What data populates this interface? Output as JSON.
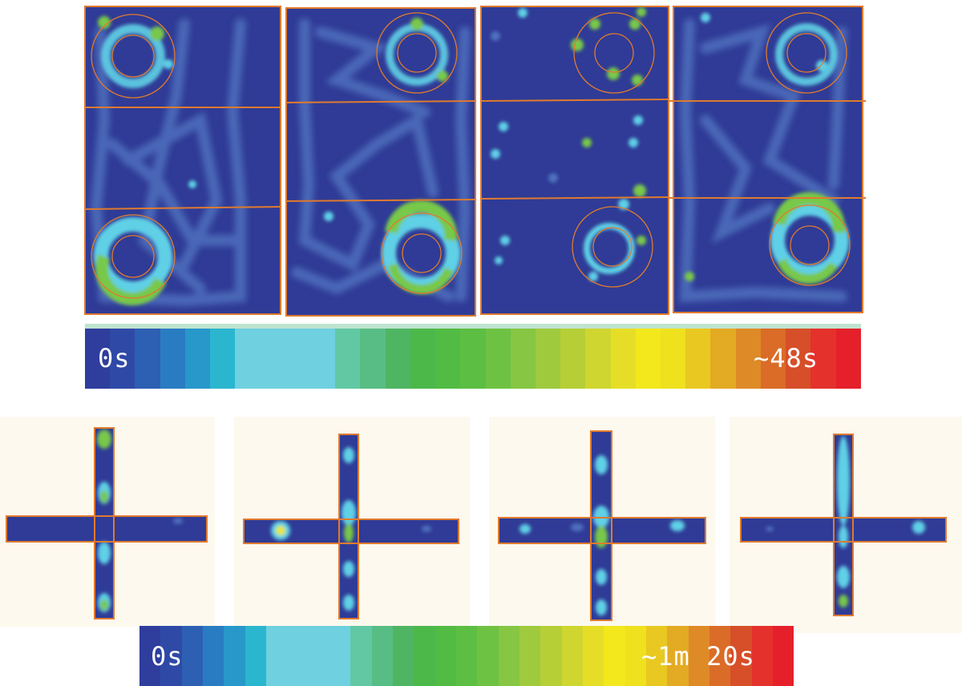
{
  "top_figure": {
    "colorbar": {
      "min_label": "0s",
      "max_label": "~48s",
      "colors": [
        "#2f3d9c",
        "#2f4aa6",
        "#2d5fb3",
        "#2a7cc2",
        "#2798c9",
        "#2bb6cf",
        "#6fd0e0",
        "#6fd0e0",
        "#6fd0e0",
        "#6fd0e0",
        "#62c8a4",
        "#58bd84",
        "#4fb562",
        "#4cb84a",
        "#52bb44",
        "#5cbe42",
        "#6ec243",
        "#86c642",
        "#9fca3e",
        "#b6cf37",
        "#cfd62f",
        "#e6de26",
        "#f2e81c",
        "#efe11e",
        "#e9c921",
        "#e3aa24",
        "#de8a27",
        "#da6c28",
        "#d64f29",
        "#e5312c",
        "#e5202b"
      ]
    }
  },
  "bottom_figure": {
    "colorbar": {
      "min_label": "0s",
      "max_label": "~1m 20s",
      "colors": [
        "#2f3d9c",
        "#2f4aa6",
        "#2d5fb3",
        "#2a7cc2",
        "#2798c9",
        "#2bb6cf",
        "#6fd0e0",
        "#6fd0e0",
        "#6fd0e0",
        "#6fd0e0",
        "#62c8a4",
        "#58bd84",
        "#4fb562",
        "#4cb84a",
        "#52bb44",
        "#5cbe42",
        "#6ec243",
        "#86c642",
        "#9fca3e",
        "#b6cf37",
        "#cfd62f",
        "#e6de26",
        "#f2e81c",
        "#efe11e",
        "#e9c921",
        "#e3aa24",
        "#de8a27",
        "#da6c28",
        "#d64f29",
        "#e5312c",
        "#e5202b"
      ]
    }
  },
  "colors": {
    "arena": "#2f3b96",
    "trail": "#4f6fbd",
    "outline": "#e07a2e",
    "hot_green": "#78c84a",
    "hot_cyan": "#5fd0e6",
    "hot_yellow": "#e8e832",
    "maze_bg": "#fdf9ee"
  }
}
